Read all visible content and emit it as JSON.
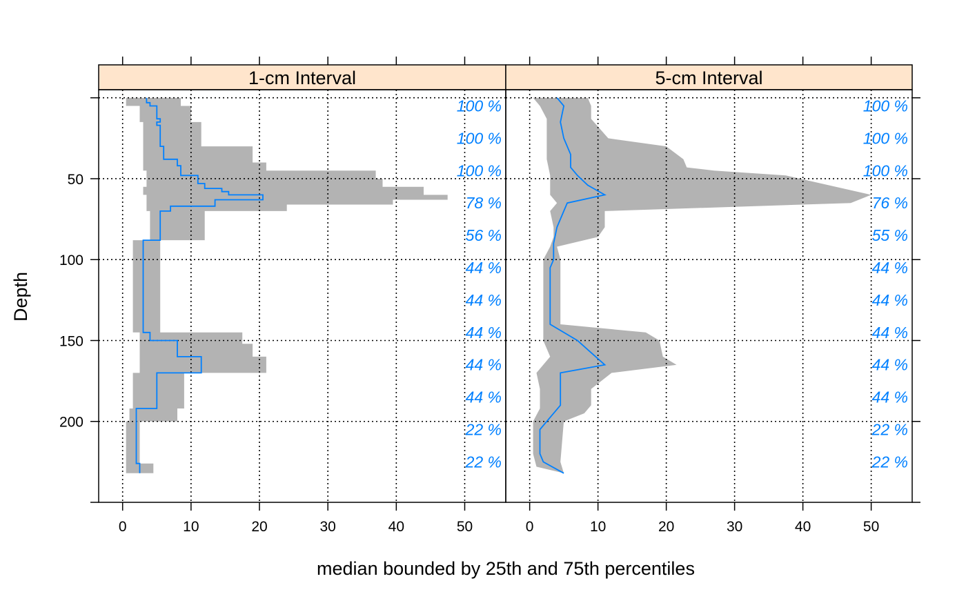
{
  "chart_data": {
    "type": "area",
    "xlabel": "median bounded by 25th and 75th percentiles",
    "ylabel": "Depth",
    "xlim": [
      -3.5,
      56
    ],
    "ylim": [
      250,
      -5
    ],
    "x_ticks": [
      0,
      10,
      20,
      30,
      40,
      50
    ],
    "y_ticks": [
      50,
      100,
      150,
      200
    ],
    "grid": true,
    "colors": {
      "band": "#b3b3b3",
      "median": "#0080ff",
      "strip": "#ffe5cc",
      "pct_text": "#0080ff"
    },
    "panels": [
      {
        "strip_label": "1-cm Interval",
        "percent_labels": [
          {
            "depth": 5,
            "text": "100 %"
          },
          {
            "depth": 25,
            "text": "100 %"
          },
          {
            "depth": 45,
            "text": "100 %"
          },
          {
            "depth": 65,
            "text": "78 %"
          },
          {
            "depth": 85,
            "text": "56 %"
          },
          {
            "depth": 105,
            "text": "44 %"
          },
          {
            "depth": 125,
            "text": "44 %"
          },
          {
            "depth": 145,
            "text": "44 %"
          },
          {
            "depth": 165,
            "text": "44 %"
          },
          {
            "depth": 185,
            "text": "44 %"
          },
          {
            "depth": 205,
            "text": "22 %"
          },
          {
            "depth": 225,
            "text": "22 %"
          }
        ],
        "band": [
          {
            "top": 0,
            "bottom": 5,
            "q25": 0.5,
            "q75": 8.5
          },
          {
            "top": 5,
            "bottom": 15,
            "q25": 2.5,
            "q75": 10.0
          },
          {
            "top": 15,
            "bottom": 30,
            "q25": 3.0,
            "q75": 11.5
          },
          {
            "top": 30,
            "bottom": 40,
            "q25": 3.0,
            "q75": 19.0
          },
          {
            "top": 40,
            "bottom": 45,
            "q25": 3.0,
            "q75": 21.0
          },
          {
            "top": 45,
            "bottom": 50,
            "q25": 3.5,
            "q75": 37.0
          },
          {
            "top": 50,
            "bottom": 55,
            "q25": 3.5,
            "q75": 38.0
          },
          {
            "top": 55,
            "bottom": 60,
            "q25": 3.0,
            "q75": 44.0
          },
          {
            "top": 60,
            "bottom": 63,
            "q25": 3.5,
            "q75": 47.5
          },
          {
            "top": 63,
            "bottom": 66,
            "q25": 3.5,
            "q75": 39.5
          },
          {
            "top": 66,
            "bottom": 70,
            "q25": 3.5,
            "q75": 24.0
          },
          {
            "top": 70,
            "bottom": 80,
            "q25": 4.0,
            "q75": 12.0
          },
          {
            "top": 80,
            "bottom": 88,
            "q25": 4.0,
            "q75": 12.0
          },
          {
            "top": 88,
            "bottom": 145,
            "q25": 1.5,
            "q75": 5.5
          },
          {
            "top": 145,
            "bottom": 152,
            "q25": 2.5,
            "q75": 17.5
          },
          {
            "top": 152,
            "bottom": 160,
            "q25": 2.5,
            "q75": 19.0
          },
          {
            "top": 160,
            "bottom": 170,
            "q25": 2.5,
            "q75": 21.0
          },
          {
            "top": 170,
            "bottom": 192,
            "q25": 1.5,
            "q75": 9.0
          },
          {
            "top": 192,
            "bottom": 200,
            "q25": 1.0,
            "q75": 8.0
          },
          {
            "top": 200,
            "bottom": 226,
            "q25": 0.5,
            "q75": 2.5
          },
          {
            "top": 226,
            "bottom": 232,
            "q25": 0.5,
            "q75": 4.5
          }
        ],
        "median": [
          [
            0,
            3.5
          ],
          [
            3,
            4.0
          ],
          [
            5,
            5.0
          ],
          [
            13,
            5.5
          ],
          [
            15,
            5.0
          ],
          [
            17,
            5.5
          ],
          [
            30,
            6.0
          ],
          [
            38,
            8.0
          ],
          [
            42,
            8.5
          ],
          [
            48,
            11.0
          ],
          [
            53,
            12.0
          ],
          [
            56,
            14.5
          ],
          [
            58,
            15.5
          ],
          [
            60,
            20.5
          ],
          [
            63,
            13.5
          ],
          [
            67,
            7.0
          ],
          [
            70,
            5.5
          ],
          [
            88,
            3.0
          ],
          [
            114,
            3.0
          ],
          [
            127,
            3.0
          ],
          [
            145,
            4.0
          ],
          [
            150,
            8.0
          ],
          [
            160,
            11.5
          ],
          [
            170,
            5.0
          ],
          [
            192,
            2.0
          ],
          [
            226,
            2.5
          ],
          [
            232,
            2.5
          ]
        ]
      },
      {
        "strip_label": "5-cm Interval",
        "percent_labels": [
          {
            "depth": 5,
            "text": "100 %"
          },
          {
            "depth": 25,
            "text": "100 %"
          },
          {
            "depth": 45,
            "text": "100 %"
          },
          {
            "depth": 65,
            "text": "76 %"
          },
          {
            "depth": 85,
            "text": "55 %"
          },
          {
            "depth": 105,
            "text": "44 %"
          },
          {
            "depth": 125,
            "text": "44 %"
          },
          {
            "depth": 145,
            "text": "44 %"
          },
          {
            "depth": 165,
            "text": "44 %"
          },
          {
            "depth": 185,
            "text": "44 %"
          },
          {
            "depth": 205,
            "text": "22 %"
          },
          {
            "depth": 225,
            "text": "22 %"
          }
        ],
        "band_upper": [
          [
            0,
            8.5
          ],
          [
            5,
            9.0
          ],
          [
            13,
            9.0
          ],
          [
            25,
            11.5
          ],
          [
            30,
            20.0
          ],
          [
            38,
            22.5
          ],
          [
            43,
            23.0
          ],
          [
            45,
            27.0
          ],
          [
            48,
            37.5
          ],
          [
            60,
            50.0
          ],
          [
            65,
            47.0
          ],
          [
            70,
            11.0
          ],
          [
            80,
            11.0
          ],
          [
            86,
            10.0
          ],
          [
            92,
            4.0
          ],
          [
            100,
            4.5
          ],
          [
            140,
            4.5
          ],
          [
            145,
            17.0
          ],
          [
            150,
            19.0
          ],
          [
            160,
            19.5
          ],
          [
            165,
            21.5
          ],
          [
            170,
            12.0
          ],
          [
            180,
            9.0
          ],
          [
            190,
            9.0
          ],
          [
            195,
            8.0
          ],
          [
            200,
            5.0
          ],
          [
            225,
            4.5
          ],
          [
            232,
            5.0
          ]
        ],
        "band_lower": [
          [
            232,
            5.0
          ],
          [
            228,
            1.0
          ],
          [
            220,
            0.5
          ],
          [
            200,
            0.5
          ],
          [
            192,
            1.5
          ],
          [
            180,
            1.5
          ],
          [
            170,
            1.0
          ],
          [
            160,
            3.0
          ],
          [
            150,
            2.0
          ],
          [
            145,
            2.0
          ],
          [
            140,
            2.0
          ],
          [
            100,
            2.0
          ],
          [
            92,
            3.0
          ],
          [
            86,
            3.5
          ],
          [
            80,
            3.5
          ],
          [
            70,
            3.0
          ],
          [
            65,
            4.0
          ],
          [
            60,
            3.0
          ],
          [
            55,
            3.0
          ],
          [
            48,
            3.0
          ],
          [
            38,
            2.5
          ],
          [
            25,
            2.5
          ],
          [
            13,
            2.5
          ],
          [
            5,
            1.5
          ],
          [
            0,
            0.5
          ]
        ],
        "median": [
          [
            0,
            4.0
          ],
          [
            5,
            5.0
          ],
          [
            15,
            4.5
          ],
          [
            25,
            5.0
          ],
          [
            35,
            6.0
          ],
          [
            43,
            6.0
          ],
          [
            48,
            7.0
          ],
          [
            54,
            8.5
          ],
          [
            60,
            11.0
          ],
          [
            65,
            5.5
          ],
          [
            70,
            5.0
          ],
          [
            80,
            4.0
          ],
          [
            90,
            3.5
          ],
          [
            100,
            3.5
          ],
          [
            105,
            3.0
          ],
          [
            140,
            3.0
          ],
          [
            150,
            7.0
          ],
          [
            165,
            11.0
          ],
          [
            170,
            4.5
          ],
          [
            190,
            4.5
          ],
          [
            200,
            2.5
          ],
          [
            205,
            1.5
          ],
          [
            220,
            1.5
          ],
          [
            225,
            2.0
          ],
          [
            232,
            5.0
          ]
        ]
      }
    ]
  }
}
